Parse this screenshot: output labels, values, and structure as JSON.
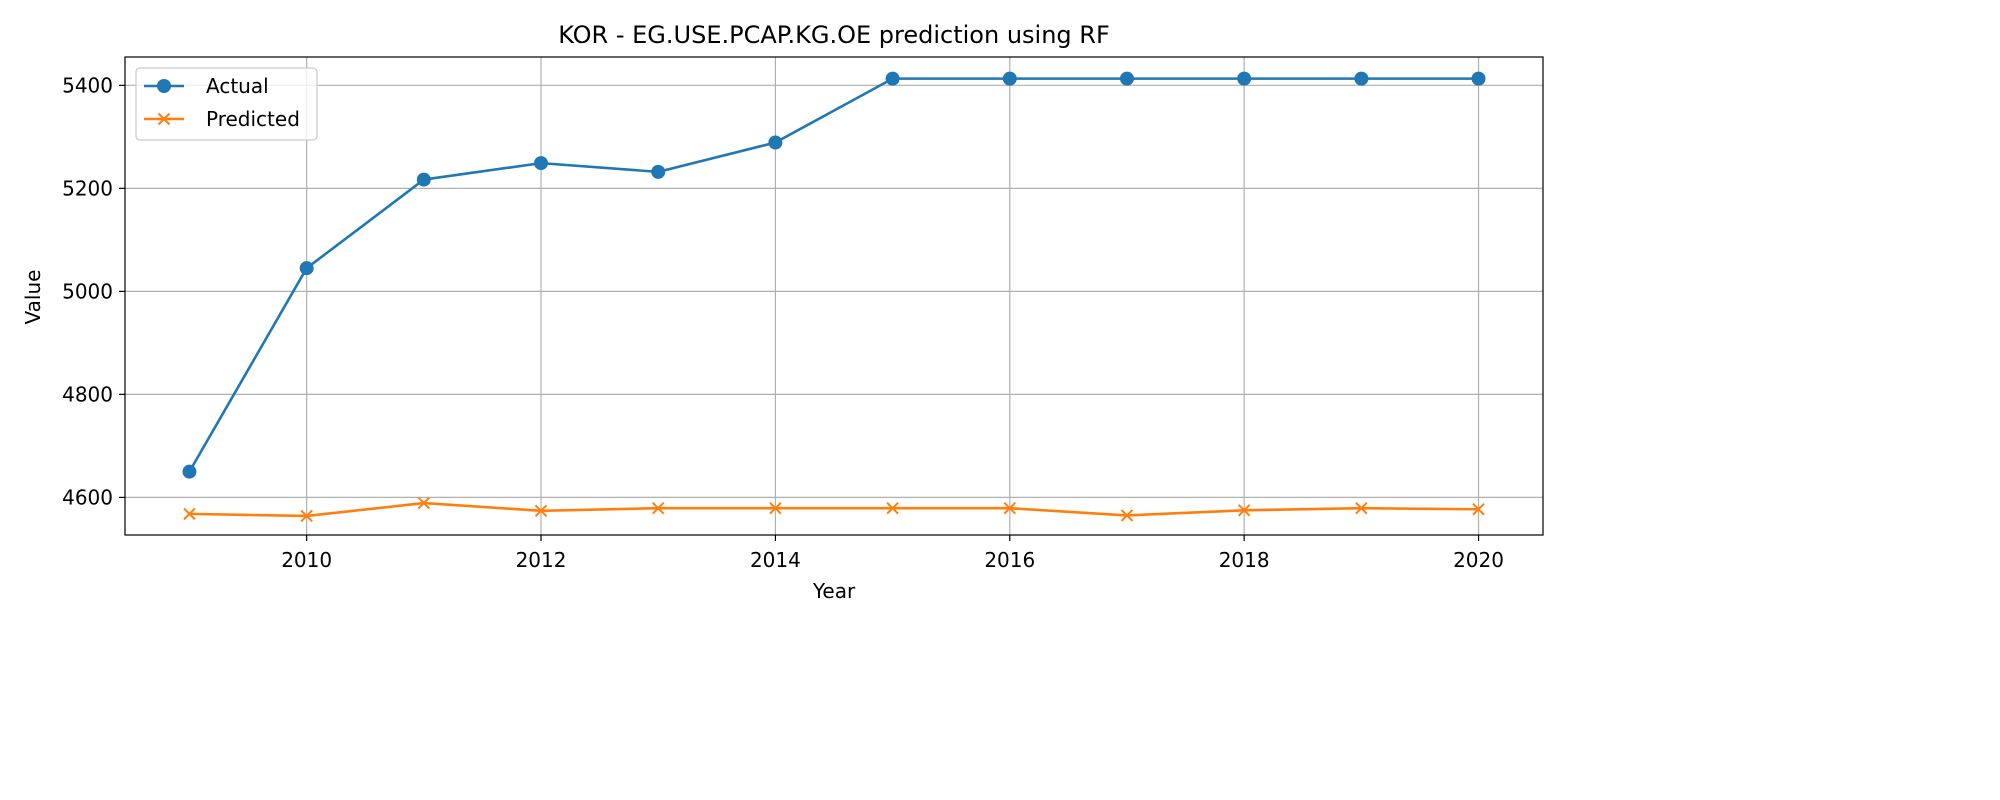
{
  "chart_data": {
    "type": "line",
    "title": "KOR - EG.USE.PCAP.KG.OE prediction using RF",
    "xlabel": "Year",
    "ylabel": "Value",
    "x": [
      2009,
      2010,
      2011,
      2012,
      2013,
      2014,
      2015,
      2016,
      2017,
      2018,
      2019,
      2020
    ],
    "series": [
      {
        "name": "Actual",
        "color": "#1f77b4",
        "marker": "circle",
        "values": [
          4650,
          5045,
          5217,
          5249,
          5232,
          5289,
          5413,
          5413,
          5413,
          5413,
          5413,
          5413
        ]
      },
      {
        "name": "Predicted",
        "color": "#ff7f0e",
        "marker": "x",
        "values": [
          4568,
          4564,
          4589,
          4574,
          4579,
          4579,
          4579,
          4579,
          4565,
          4575,
          4579,
          4577
        ]
      }
    ],
    "xlim": [
      2008.45,
      2020.55
    ],
    "ylim": [
      4527,
      5455
    ],
    "xticks": [
      2010,
      2012,
      2014,
      2016,
      2018,
      2020
    ],
    "yticks": [
      4600,
      4800,
      5000,
      5200,
      5400
    ],
    "grid": true,
    "legend_position": "upper-left"
  }
}
